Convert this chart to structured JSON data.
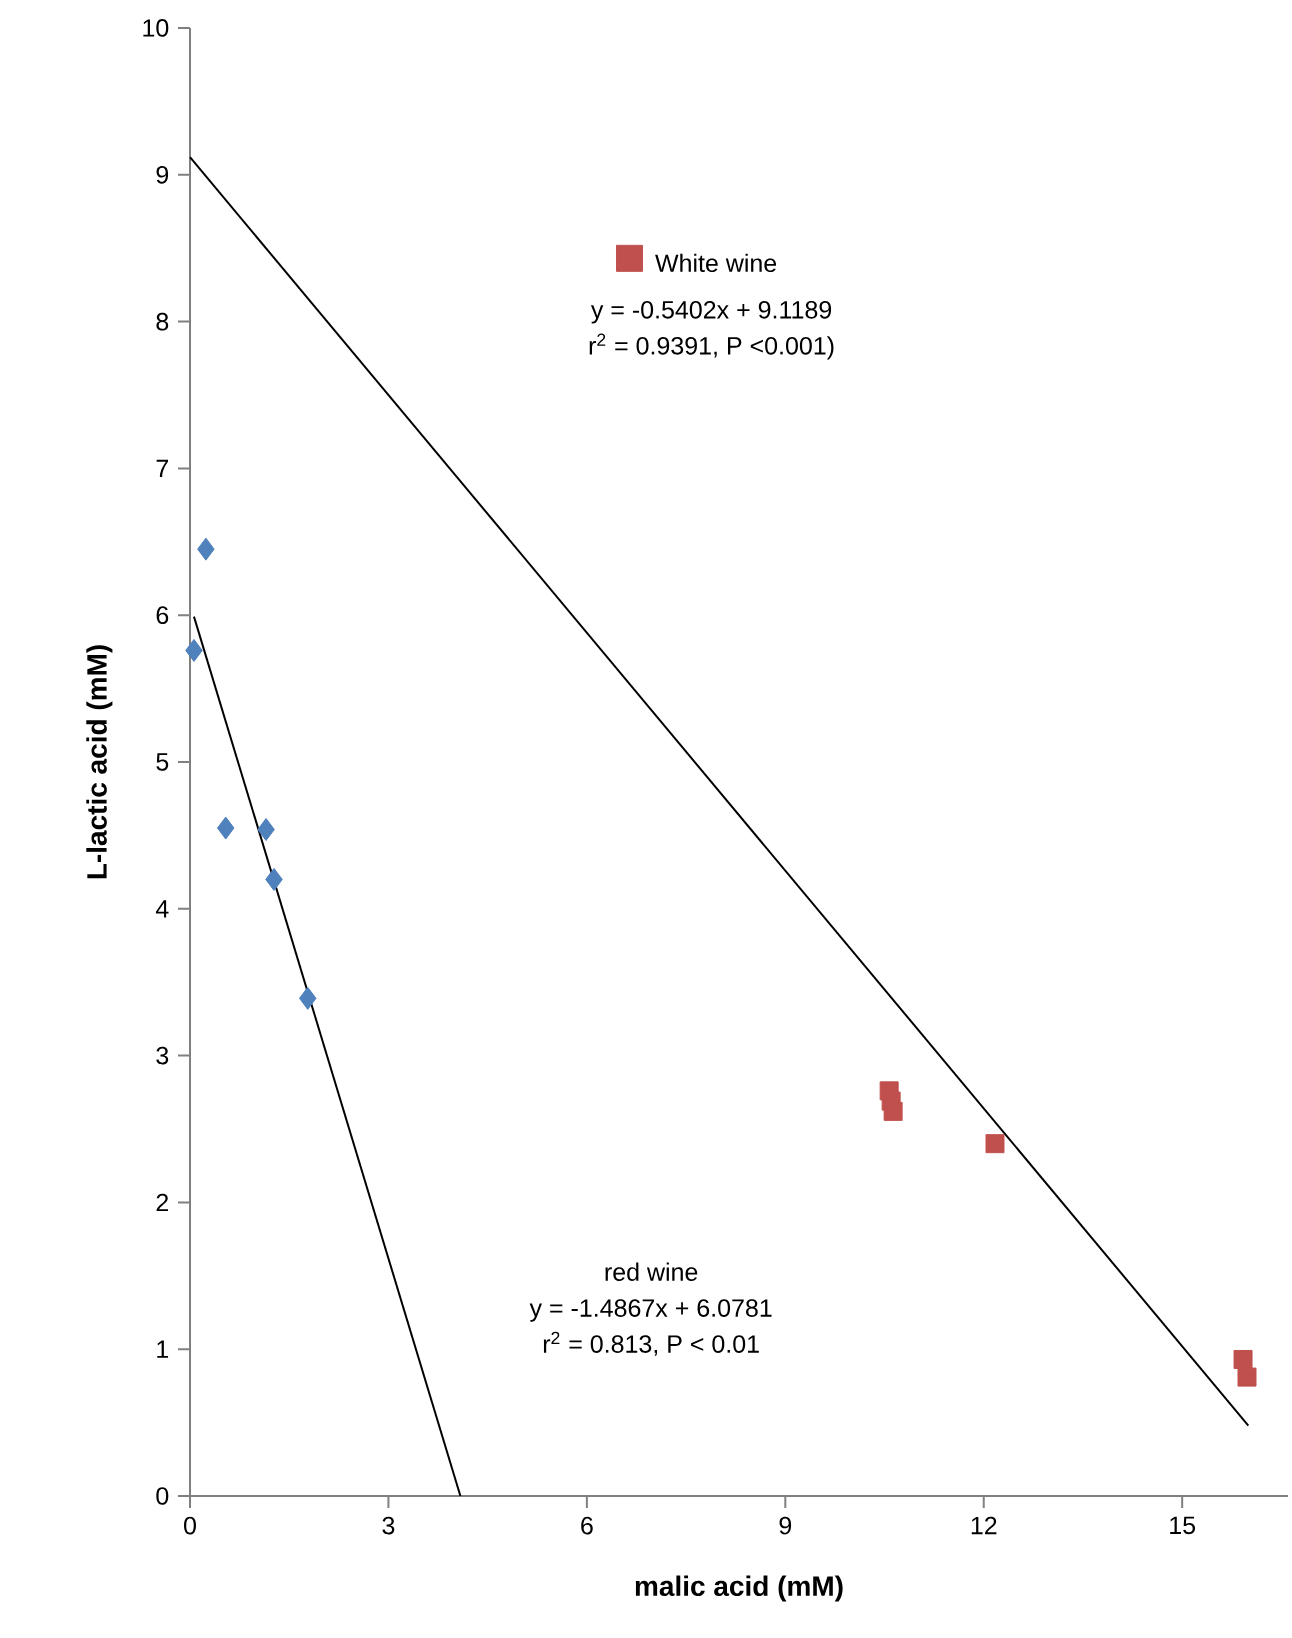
{
  "chart_data": {
    "type": "scatter",
    "xlabel": "malic acid (mM)",
    "ylabel": "L-lactic acid (mM)",
    "xlim": [
      0,
      16.6
    ],
    "ylim": [
      0,
      10
    ],
    "xticks": [
      0,
      3,
      6,
      9,
      12,
      15
    ],
    "yticks": [
      0,
      1,
      2,
      3,
      4,
      5,
      6,
      7,
      8,
      9,
      10
    ],
    "grid": false,
    "legend": "top",
    "series": [
      {
        "marker": "diamond",
        "color": "#4f81bd",
        "x": [
          0.24,
          0.06,
          0.54,
          1.15,
          1.27,
          1.78
        ],
        "values": [
          6.45,
          5.76,
          4.55,
          4.54,
          4.2,
          3.39
        ]
      },
      {
        "name": "White wine",
        "marker": "square",
        "color": "#c0504d",
        "x": [
          10.57,
          10.6,
          10.63,
          12.17,
          15.92,
          15.98
        ],
        "values": [
          2.76,
          2.69,
          2.62,
          2.4,
          0.93,
          0.81
        ]
      },
      {
        "type": "line",
        "marker": "none",
        "color": "#000000",
        "x": [
          0.06,
          4.088
        ],
        "values": [
          5.99,
          0
        ]
      },
      {
        "type": "line",
        "marker": "none",
        "color": "#000000",
        "x": [
          0,
          16
        ],
        "values": [
          9.12,
          0.48
        ]
      }
    ],
    "annotations": [
      "y = -0.5402x + 9.1189",
      "r$^{2}$ = 0.9391, P <0.001)",
      "red wine",
      "y = -1.4867x + 6.0781",
      "r$^{2}$ = 0.813, P < 0.01"
    ]
  }
}
